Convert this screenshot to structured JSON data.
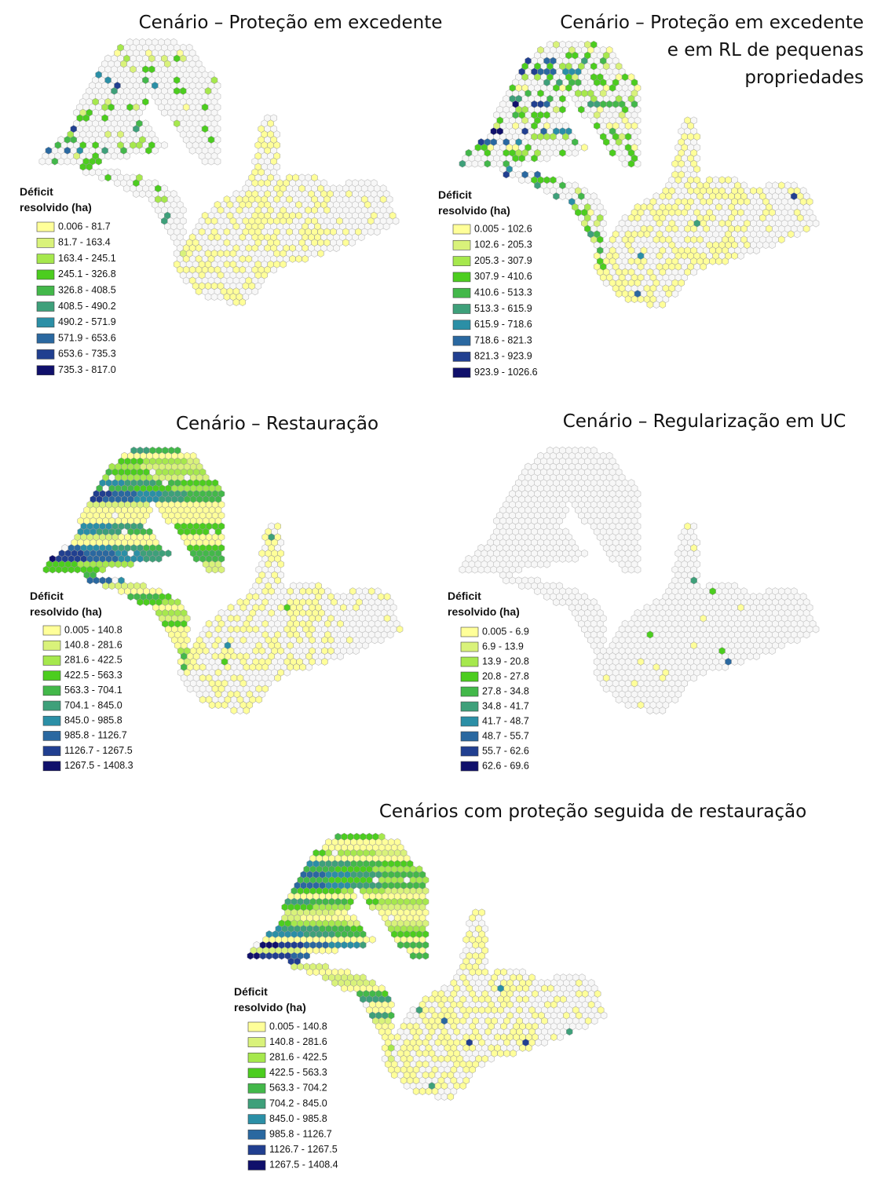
{
  "legend_colors": [
    "#ffff99",
    "#d9f27a",
    "#a6e84d",
    "#4ccd1f",
    "#43b84a",
    "#3ea07a",
    "#2b8fa6",
    "#2a68a0",
    "#213f90",
    "#10106b"
  ],
  "panels": [
    {
      "title": [
        "Cenário – Proteção em excedente"
      ],
      "legend_title": [
        "Déficit",
        "resolvido (ha)"
      ],
      "legend_items": [
        "0.006 - 81.7",
        "81.7 - 163.4",
        "163.4 - 245.1",
        "245.1 - 326.8",
        "326.8 - 408.5",
        "408.5 - 490.2",
        "490.2 - 571.9",
        "571.9 - 653.6",
        "653.6 - 735.3",
        "735.3 - 817.0"
      ]
    },
    {
      "title": [
        "Cenário – Proteção em excedente",
        "e em RL de pequenas",
        "propriedades"
      ],
      "legend_title": [
        "Déficit",
        "resolvido (ha)"
      ],
      "legend_items": [
        "0.005 - 102.6",
        "102.6 - 205.3",
        "205.3 - 307.9",
        "307.9 - 410.6",
        "410.6 - 513.3",
        "513.3 - 615.9",
        "615.9 - 718.6",
        "718.6 - 821.3",
        "821.3 - 923.9",
        "923.9 - 1026.6"
      ]
    },
    {
      "title": [
        "Cenário – Restauração"
      ],
      "legend_title": [
        "Déficit",
        "resolvido (ha)"
      ],
      "legend_items": [
        "0.005 - 140.8",
        "140.8 - 281.6",
        "281.6 - 422.5",
        "422.5 - 563.3",
        "563.3 - 704.1",
        "704.1 - 845.0",
        "845.0 - 985.8",
        "985.8 - 1126.7",
        "1126.7 - 1267.5",
        "1267.5 - 1408.3"
      ]
    },
    {
      "title": [
        "Cenário – Regularização em UC"
      ],
      "legend_title": [
        "Déficit",
        "resolvido (ha)"
      ],
      "legend_items": [
        "0.005 - 6.9",
        "6.9 - 13.9",
        "13.9 - 20.8",
        "20.8 - 27.8",
        "27.8 - 34.8",
        "34.8 - 41.7",
        "41.7 - 48.7",
        "48.7 - 55.7",
        "55.7 - 62.6",
        "62.6 - 69.6"
      ]
    },
    {
      "title": [
        "Cenários com proteção seguida de restauração"
      ],
      "legend_title": [
        "Déficit",
        "resolvido (ha)"
      ],
      "legend_items": [
        "0.005 - 140.8",
        "140.8 - 281.6",
        "281.6 - 422.5",
        "422.5 - 563.3",
        "563.3 - 704.2",
        "704.2 - 845.0",
        "845.0 - 985.8",
        "985.8 - 1126.7",
        "1126.7 - 1267.5",
        "1267.5 - 1408.4"
      ]
    }
  ]
}
